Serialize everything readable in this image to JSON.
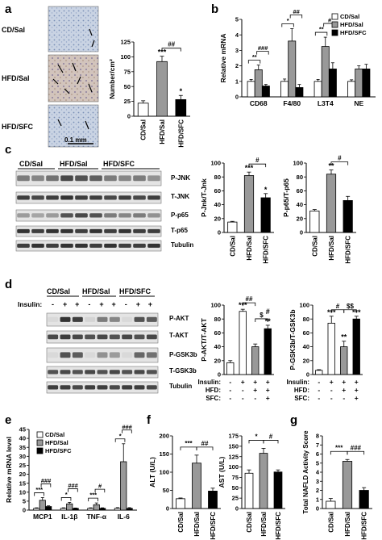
{
  "panels": {
    "a": {
      "letter": "a",
      "rows": [
        "CD/Sal",
        "HFD/Sal",
        "HFD/SFC"
      ],
      "scale_bar": "0.1 mm",
      "chart_data": {
        "type": "bar",
        "categories": [
          "CD/Sal",
          "HFD/Sal",
          "HFD/SFC"
        ],
        "values": [
          22,
          92,
          28
        ],
        "errors": [
          4,
          9,
          7
        ],
        "fills": [
          "#ffffff",
          "#999999",
          "#000000"
        ],
        "ylabel": "Number/cm²",
        "ylim": [
          0,
          125
        ],
        "yticks": [
          0,
          25,
          50,
          75,
          100,
          125
        ],
        "yticklabels": [
          "0",
          "25",
          "50",
          "75",
          "100",
          "125"
        ],
        "annotations": [
          {
            "text": "***",
            "bar": 1
          },
          {
            "text": "*",
            "bar": 2
          },
          {
            "text": "##",
            "from": 1,
            "to": 2
          }
        ]
      }
    },
    "b": {
      "letter": "b",
      "chart_data": {
        "type": "bar",
        "categories": [
          "CD68",
          "F4/80",
          "L3T4",
          "NE"
        ],
        "series": [
          {
            "name": "CD/Sal",
            "values": [
              1.0,
              1.0,
              1.0,
              1.0
            ],
            "errors": [
              0.12,
              0.15,
              0.12,
              0.1
            ],
            "fill": "#ffffff"
          },
          {
            "name": "HFD/Sal",
            "values": [
              1.75,
              3.6,
              3.25,
              1.8
            ],
            "errors": [
              0.3,
              0.8,
              0.6,
              0.2
            ],
            "fill": "#999999"
          },
          {
            "name": "HFD/SFC",
            "values": [
              0.7,
              0.6,
              1.8,
              1.8
            ],
            "errors": [
              0.1,
              0.2,
              0.4,
              0.3
            ],
            "fill": "#000000"
          }
        ],
        "ylabel": "Relative mRNA",
        "ylim": [
          0,
          5
        ],
        "yticks": [
          0,
          1,
          2,
          3,
          4,
          5
        ],
        "yticklabels": [
          "0",
          "1",
          "2",
          "3",
          "4",
          "5"
        ],
        "legend_position": "top-right",
        "annotations": [
          "**",
          "###",
          "*",
          "##",
          "**",
          "#"
        ]
      }
    },
    "c": {
      "letter": "c",
      "groups": [
        "CD/Sal",
        "HFD/Sal",
        "HFD/SFC"
      ],
      "bands": [
        "P-JNK",
        "T-JNK",
        "P-p65",
        "T-p65",
        "Tubulin"
      ],
      "chart1": {
        "type": "bar",
        "categories": [
          "CD/Sal",
          "HFD/Sal",
          "HFD/SFC"
        ],
        "values": [
          15,
          82,
          50
        ],
        "errors": [
          1,
          5,
          6
        ],
        "fills": [
          "#ffffff",
          "#999999",
          "#000000"
        ],
        "ylabel": "P-Jnk/T-Jnk",
        "ylim": [
          0,
          100
        ],
        "yticks": [
          0,
          20,
          40,
          60,
          80,
          100
        ],
        "yticklabels": [
          "0",
          "20",
          "40",
          "60",
          "80",
          "100"
        ],
        "annotations": [
          {
            "text": "***",
            "bar": 1
          },
          {
            "text": "*",
            "bar": 2
          },
          {
            "text": "#",
            "from": 1,
            "to": 2
          }
        ]
      },
      "chart2": {
        "type": "bar",
        "categories": [
          "CD/Sal",
          "HFD/Sal",
          "HFD/SFC"
        ],
        "values": [
          31,
          84,
          46
        ],
        "errors": [
          2,
          6,
          6
        ],
        "fills": [
          "#ffffff",
          "#999999",
          "#000000"
        ],
        "ylabel": "P-p65/T-p65",
        "ylim": [
          0,
          100
        ],
        "yticks": [
          0,
          20,
          40,
          60,
          80,
          100
        ],
        "yticklabels": [
          "0",
          "20",
          "40",
          "60",
          "80",
          "100"
        ],
        "annotations": [
          {
            "text": "**",
            "bar": 1
          },
          {
            "text": "#",
            "from": 1,
            "to": 2
          }
        ]
      }
    },
    "d": {
      "letter": "d",
      "groups": [
        "CD/Sal",
        "HFD/Sal",
        "HFD/SFC"
      ],
      "insulin_label": "Insulin:",
      "insulin_signs": [
        "-",
        "+",
        "+",
        "-",
        "+",
        "+",
        "-",
        "+",
        "+"
      ],
      "bands": [
        "P-AKT",
        "T-AKT",
        "P-GSK3b",
        "T-GSK3b",
        "Tubulin"
      ],
      "cond_labels": [
        "Insulin:",
        "HFD:",
        "SFC:"
      ],
      "cond_values": [
        [
          "-",
          "+",
          "+",
          "+"
        ],
        [
          "-",
          "-",
          "+",
          "+"
        ],
        [
          "-",
          "-",
          "-",
          "+"
        ]
      ],
      "chart1": {
        "type": "bar",
        "values": [
          17,
          91,
          40,
          66
        ],
        "errors": [
          3,
          3,
          4,
          5
        ],
        "fills": [
          "#ffffff",
          "#ffffff",
          "#999999",
          "#000000"
        ],
        "ylabel": "P-AKT/T-AKT",
        "ylim": [
          0,
          100
        ],
        "yticks": [
          0,
          20,
          40,
          60,
          80,
          100
        ],
        "yticklabels": [
          "0",
          "20",
          "40",
          "60",
          "80",
          "100"
        ],
        "annotations": [
          {
            "text": "***",
            "bar": 1
          },
          {
            "text": "**",
            "bar": 3
          },
          {
            "text": "#",
            "bar": 3,
            "offset": 12
          },
          {
            "text": "##",
            "from": 1,
            "to": 2
          },
          {
            "text": "$",
            "from": 2,
            "to": 3
          }
        ]
      },
      "chart2": {
        "type": "bar",
        "values": [
          6,
          74,
          40,
          80
        ],
        "errors": [
          1,
          10,
          8,
          4
        ],
        "fills": [
          "#ffffff",
          "#ffffff",
          "#999999",
          "#000000"
        ],
        "ylabel": "P-GSK3b/T-GSK3b",
        "ylim": [
          0,
          100
        ],
        "yticks": [
          0,
          20,
          40,
          60,
          80,
          100
        ],
        "yticklabels": [
          "0",
          "20",
          "40",
          "60",
          "80",
          "100"
        ],
        "annotations": [
          {
            "text": "***",
            "bar": 1
          },
          {
            "text": "**",
            "bar": 2
          },
          {
            "text": "***",
            "bar": 3
          },
          {
            "text": "#",
            "from": 1,
            "to": 2
          },
          {
            "text": "$$",
            "from": 2,
            "to": 3
          }
        ]
      }
    },
    "e": {
      "letter": "e",
      "chart_data": {
        "type": "bar",
        "categories": [
          "MCP1",
          "IL-1β",
          "TNF-α",
          "IL-6"
        ],
        "series": [
          {
            "name": "CD/Sal",
            "values": [
              1,
              1,
              1,
              1
            ],
            "errors": [
              0.3,
              0.3,
              0.3,
              0.4
            ],
            "fill": "#ffffff"
          },
          {
            "name": "HFD/Sal",
            "values": [
              5.5,
              3.5,
              3,
              27
            ],
            "errors": [
              1.5,
              0.8,
              1,
              10
            ],
            "fill": "#999999"
          },
          {
            "name": "HFD/SFC",
            "values": [
              2,
              1,
              1,
              1
            ],
            "errors": [
              0.4,
              0.2,
              0.3,
              0.4
            ],
            "fill": "#000000"
          }
        ],
        "ylabel": "Relative mRNA level",
        "ylim": [
          0,
          45
        ],
        "yticks": [
          0,
          5,
          10,
          15,
          20,
          25,
          30,
          35,
          40,
          45
        ],
        "yticklabels": [
          "0",
          "5",
          "10",
          "15",
          "20",
          "25",
          "30",
          "35",
          "40",
          "45"
        ],
        "legend_position": "top-left",
        "annotations": [
          "***",
          "###",
          "*",
          "###",
          "***",
          "#",
          "*",
          "###"
        ]
      }
    },
    "f": {
      "letter": "f",
      "chart1": {
        "type": "bar",
        "categories": [
          "CD/Sal",
          "HFD/Sal",
          "HFD/SFC"
        ],
        "values": [
          27,
          125,
          48
        ],
        "errors": [
          2,
          22,
          8
        ],
        "fills": [
          "#ffffff",
          "#999999",
          "#000000"
        ],
        "ylabel": "ALT (U/L)",
        "ylim": [
          0,
          200
        ],
        "yticks": [
          0,
          50,
          100,
          150,
          200
        ],
        "yticklabels": [
          "0",
          "50",
          "100",
          "150",
          "200"
        ],
        "annotations": [
          {
            "text": "***",
            "from": 0,
            "to": 1
          },
          {
            "text": "##",
            "from": 1,
            "to": 2
          }
        ]
      },
      "chart2": {
        "type": "bar",
        "categories": [
          "CD/Sal",
          "HFD/Sal",
          "HFD/SFC"
        ],
        "values": [
          85,
          133,
          88
        ],
        "errors": [
          8,
          12,
          5
        ],
        "fills": [
          "#ffffff",
          "#999999",
          "#000000"
        ],
        "ylabel": "AST (U/L)",
        "ylim": [
          0,
          175
        ],
        "yticks": [
          0,
          25,
          50,
          75,
          100,
          125,
          150,
          175
        ],
        "yticklabels": [
          "0",
          "25",
          "50",
          "75",
          "100",
          "125",
          "150",
          "175"
        ],
        "annotations": [
          {
            "text": "*",
            "from": 0,
            "to": 1
          },
          {
            "text": "#",
            "from": 1,
            "to": 2
          }
        ]
      }
    },
    "g": {
      "letter": "g",
      "chart_data": {
        "type": "bar",
        "categories": [
          "CD/Sal",
          "HFD/Sal",
          "HFD/SFC"
        ],
        "values": [
          0.8,
          5.2,
          2.0
        ],
        "errors": [
          0.3,
          0.2,
          0.3
        ],
        "fills": [
          "#ffffff",
          "#999999",
          "#000000"
        ],
        "ylabel": "Total NAFLD Activity Score",
        "ylim": [
          0,
          8
        ],
        "yticks": [
          0,
          1,
          2,
          3,
          4,
          5,
          6,
          7,
          8
        ],
        "yticklabels": [
          "0",
          "1",
          "2",
          "3",
          "4",
          "5",
          "6",
          "7",
          "8"
        ],
        "annotations": [
          {
            "text": "***",
            "from": 0,
            "to": 1
          },
          {
            "text": "###",
            "from": 1,
            "to": 2
          }
        ]
      }
    }
  }
}
